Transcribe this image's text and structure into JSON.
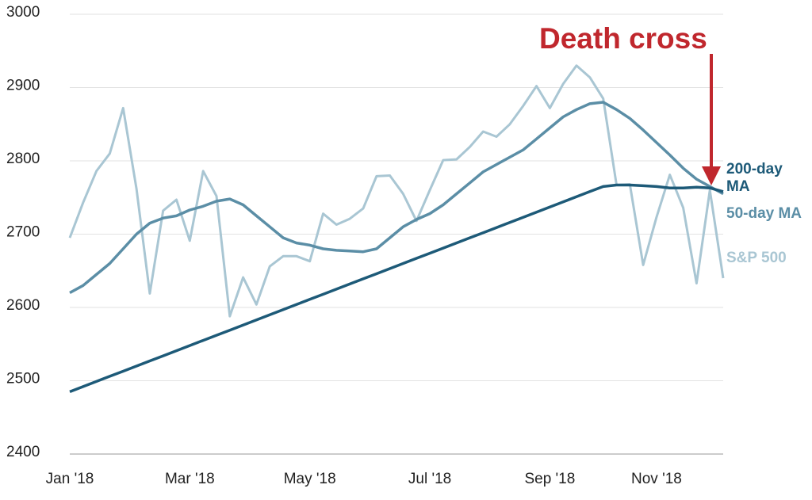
{
  "chart_data": {
    "type": "line",
    "annotation": "Death cross",
    "categories": [
      "Jan '18",
      null,
      null,
      null,
      null,
      null,
      null,
      null,
      null,
      "Mar '18",
      null,
      null,
      null,
      null,
      null,
      null,
      null,
      null,
      "May '18",
      null,
      null,
      null,
      null,
      null,
      null,
      null,
      null,
      "Jul '18",
      null,
      null,
      null,
      null,
      null,
      null,
      null,
      null,
      "Sep '18",
      null,
      null,
      null,
      null,
      null,
      null,
      null,
      "Nov '18",
      null,
      null,
      null,
      null,
      null
    ],
    "series": [
      {
        "name": "200-day MA",
        "color": "#1d5a78",
        "values": [
          2485,
          2492,
          2499,
          2506,
          2513,
          2520,
          2527,
          2534,
          2541,
          2548,
          2555,
          2562,
          2569,
          2576,
          2583,
          2590,
          2597,
          2604,
          2611,
          2618,
          2625,
          2632,
          2639,
          2646,
          2653,
          2660,
          2667,
          2674,
          2681,
          2688,
          2695,
          2702,
          2709,
          2716,
          2723,
          2730,
          2737,
          2744,
          2751,
          2758,
          2765,
          2767,
          2767,
          2766,
          2765,
          2763,
          2763,
          2764,
          2763,
          2758
        ]
      },
      {
        "name": "50-day MA",
        "color": "#5b8ea6",
        "values": [
          2620,
          2630,
          2645,
          2660,
          2680,
          2700,
          2715,
          2722,
          2725,
          2733,
          2738,
          2745,
          2748,
          2740,
          2725,
          2710,
          2695,
          2688,
          2685,
          2680,
          2678,
          2677,
          2676,
          2680,
          2695,
          2710,
          2720,
          2728,
          2740,
          2755,
          2770,
          2785,
          2795,
          2805,
          2815,
          2830,
          2845,
          2860,
          2870,
          2878,
          2880,
          2870,
          2858,
          2842,
          2825,
          2808,
          2790,
          2775,
          2765,
          2755
        ]
      },
      {
        "name": "S&P 500",
        "color": "#a9c6d3",
        "values": [
          2695,
          2743,
          2786,
          2810,
          2872,
          2762,
          2619,
          2732,
          2747,
          2691,
          2786,
          2752,
          2588,
          2641,
          2604,
          2656,
          2670,
          2670,
          2663,
          2728,
          2713,
          2721,
          2735,
          2779,
          2780,
          2755,
          2718,
          2760,
          2801,
          2802,
          2819,
          2840,
          2833,
          2850,
          2875,
          2902,
          2872,
          2905,
          2930,
          2914,
          2885,
          2767,
          2768,
          2658,
          2723,
          2781,
          2736,
          2633,
          2760,
          2640
        ]
      }
    ],
    "ylim": [
      2400,
      3000
    ],
    "yticks": [
      2400,
      2500,
      2600,
      2700,
      2800,
      2900,
      3000
    ],
    "grid": true
  }
}
